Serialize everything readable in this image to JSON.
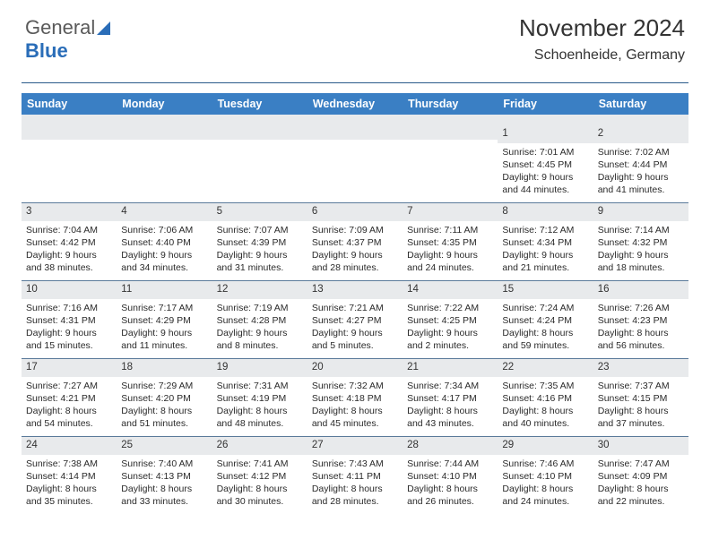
{
  "logo": {
    "text1": "General",
    "text2": "Blue"
  },
  "title": "November 2024",
  "subtitle": "Schoenheide, Germany",
  "dayNames": [
    "Sunday",
    "Monday",
    "Tuesday",
    "Wednesday",
    "Thursday",
    "Friday",
    "Saturday"
  ],
  "colors": {
    "headerBar": "#3a7fc4",
    "dayStrip": "#e8eaec",
    "rule": "#5a7a9a",
    "logoBlue": "#2a6db8"
  },
  "weeks": [
    [
      {
        "n": "",
        "sr": "",
        "ss": "",
        "dl": ""
      },
      {
        "n": "",
        "sr": "",
        "ss": "",
        "dl": ""
      },
      {
        "n": "",
        "sr": "",
        "ss": "",
        "dl": ""
      },
      {
        "n": "",
        "sr": "",
        "ss": "",
        "dl": ""
      },
      {
        "n": "",
        "sr": "",
        "ss": "",
        "dl": ""
      },
      {
        "n": "1",
        "sr": "Sunrise: 7:01 AM",
        "ss": "Sunset: 4:45 PM",
        "dl": "Daylight: 9 hours and 44 minutes."
      },
      {
        "n": "2",
        "sr": "Sunrise: 7:02 AM",
        "ss": "Sunset: 4:44 PM",
        "dl": "Daylight: 9 hours and 41 minutes."
      }
    ],
    [
      {
        "n": "3",
        "sr": "Sunrise: 7:04 AM",
        "ss": "Sunset: 4:42 PM",
        "dl": "Daylight: 9 hours and 38 minutes."
      },
      {
        "n": "4",
        "sr": "Sunrise: 7:06 AM",
        "ss": "Sunset: 4:40 PM",
        "dl": "Daylight: 9 hours and 34 minutes."
      },
      {
        "n": "5",
        "sr": "Sunrise: 7:07 AM",
        "ss": "Sunset: 4:39 PM",
        "dl": "Daylight: 9 hours and 31 minutes."
      },
      {
        "n": "6",
        "sr": "Sunrise: 7:09 AM",
        "ss": "Sunset: 4:37 PM",
        "dl": "Daylight: 9 hours and 28 minutes."
      },
      {
        "n": "7",
        "sr": "Sunrise: 7:11 AM",
        "ss": "Sunset: 4:35 PM",
        "dl": "Daylight: 9 hours and 24 minutes."
      },
      {
        "n": "8",
        "sr": "Sunrise: 7:12 AM",
        "ss": "Sunset: 4:34 PM",
        "dl": "Daylight: 9 hours and 21 minutes."
      },
      {
        "n": "9",
        "sr": "Sunrise: 7:14 AM",
        "ss": "Sunset: 4:32 PM",
        "dl": "Daylight: 9 hours and 18 minutes."
      }
    ],
    [
      {
        "n": "10",
        "sr": "Sunrise: 7:16 AM",
        "ss": "Sunset: 4:31 PM",
        "dl": "Daylight: 9 hours and 15 minutes."
      },
      {
        "n": "11",
        "sr": "Sunrise: 7:17 AM",
        "ss": "Sunset: 4:29 PM",
        "dl": "Daylight: 9 hours and 11 minutes."
      },
      {
        "n": "12",
        "sr": "Sunrise: 7:19 AM",
        "ss": "Sunset: 4:28 PM",
        "dl": "Daylight: 9 hours and 8 minutes."
      },
      {
        "n": "13",
        "sr": "Sunrise: 7:21 AM",
        "ss": "Sunset: 4:27 PM",
        "dl": "Daylight: 9 hours and 5 minutes."
      },
      {
        "n": "14",
        "sr": "Sunrise: 7:22 AM",
        "ss": "Sunset: 4:25 PM",
        "dl": "Daylight: 9 hours and 2 minutes."
      },
      {
        "n": "15",
        "sr": "Sunrise: 7:24 AM",
        "ss": "Sunset: 4:24 PM",
        "dl": "Daylight: 8 hours and 59 minutes."
      },
      {
        "n": "16",
        "sr": "Sunrise: 7:26 AM",
        "ss": "Sunset: 4:23 PM",
        "dl": "Daylight: 8 hours and 56 minutes."
      }
    ],
    [
      {
        "n": "17",
        "sr": "Sunrise: 7:27 AM",
        "ss": "Sunset: 4:21 PM",
        "dl": "Daylight: 8 hours and 54 minutes."
      },
      {
        "n": "18",
        "sr": "Sunrise: 7:29 AM",
        "ss": "Sunset: 4:20 PM",
        "dl": "Daylight: 8 hours and 51 minutes."
      },
      {
        "n": "19",
        "sr": "Sunrise: 7:31 AM",
        "ss": "Sunset: 4:19 PM",
        "dl": "Daylight: 8 hours and 48 minutes."
      },
      {
        "n": "20",
        "sr": "Sunrise: 7:32 AM",
        "ss": "Sunset: 4:18 PM",
        "dl": "Daylight: 8 hours and 45 minutes."
      },
      {
        "n": "21",
        "sr": "Sunrise: 7:34 AM",
        "ss": "Sunset: 4:17 PM",
        "dl": "Daylight: 8 hours and 43 minutes."
      },
      {
        "n": "22",
        "sr": "Sunrise: 7:35 AM",
        "ss": "Sunset: 4:16 PM",
        "dl": "Daylight: 8 hours and 40 minutes."
      },
      {
        "n": "23",
        "sr": "Sunrise: 7:37 AM",
        "ss": "Sunset: 4:15 PM",
        "dl": "Daylight: 8 hours and 37 minutes."
      }
    ],
    [
      {
        "n": "24",
        "sr": "Sunrise: 7:38 AM",
        "ss": "Sunset: 4:14 PM",
        "dl": "Daylight: 8 hours and 35 minutes."
      },
      {
        "n": "25",
        "sr": "Sunrise: 7:40 AM",
        "ss": "Sunset: 4:13 PM",
        "dl": "Daylight: 8 hours and 33 minutes."
      },
      {
        "n": "26",
        "sr": "Sunrise: 7:41 AM",
        "ss": "Sunset: 4:12 PM",
        "dl": "Daylight: 8 hours and 30 minutes."
      },
      {
        "n": "27",
        "sr": "Sunrise: 7:43 AM",
        "ss": "Sunset: 4:11 PM",
        "dl": "Daylight: 8 hours and 28 minutes."
      },
      {
        "n": "28",
        "sr": "Sunrise: 7:44 AM",
        "ss": "Sunset: 4:10 PM",
        "dl": "Daylight: 8 hours and 26 minutes."
      },
      {
        "n": "29",
        "sr": "Sunrise: 7:46 AM",
        "ss": "Sunset: 4:10 PM",
        "dl": "Daylight: 8 hours and 24 minutes."
      },
      {
        "n": "30",
        "sr": "Sunrise: 7:47 AM",
        "ss": "Sunset: 4:09 PM",
        "dl": "Daylight: 8 hours and 22 minutes."
      }
    ]
  ]
}
